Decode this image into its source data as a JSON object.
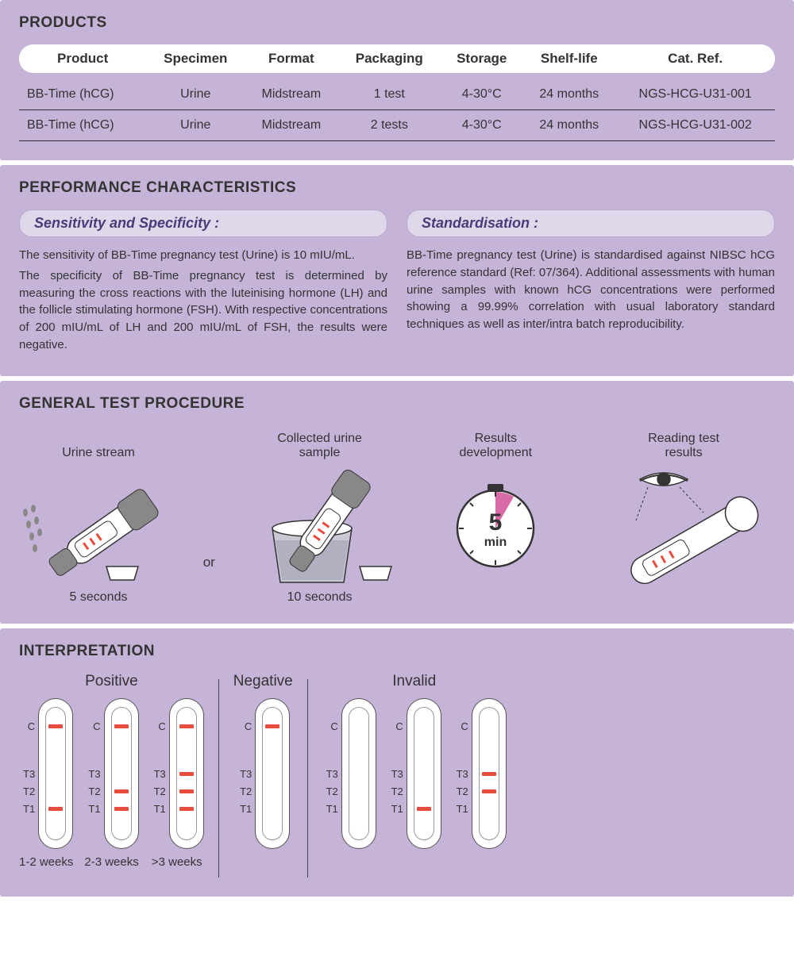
{
  "colors": {
    "panel_bg": "#c5b4d8",
    "header_pill_bg": "#e0d7eb",
    "header_pill_border": "#b8a8cc",
    "header_pill_text": "#4a3a7a",
    "text": "#333333",
    "line_red": "#e74c3c",
    "strip_border": "#555555",
    "strip_inner_border": "#999999",
    "row_border": "#333333",
    "white": "#ffffff",
    "clock_pink": "#d96aa8",
    "gray_fill": "#888888"
  },
  "products": {
    "title": "PRODUCTS",
    "columns": [
      "Product",
      "Specimen",
      "Format",
      "Packaging",
      "Storage",
      "Shelf-life",
      "Cat. Ref."
    ],
    "rows": [
      [
        "BB-Time (hCG)",
        "Urine",
        "Midstream",
        "1 test",
        "4-30°C",
        "24 months",
        "NGS-HCG-U31-001"
      ],
      [
        "BB-Time (hCG)",
        "Urine",
        "Midstream",
        "2 tests",
        "4-30°C",
        "24 months",
        "NGS-HCG-U31-002"
      ]
    ]
  },
  "performance": {
    "title": "PERFORMANCE CHARACTERISTICS",
    "left": {
      "heading": "Sensitivity and Specificity :",
      "text": "The sensitivity of BB-Time pregnancy test (Urine) is 10 mIU/mL.\nThe specificity of BB-Time pregnancy test is determined by measuring the cross reactions with the luteinising hormone (LH) and the follicle stimulating hormone (FSH). With respective concentrations of 200 mIU/mL of LH and 200 mIU/mL of FSH, the results were negative."
    },
    "right": {
      "heading": "Standardisation :",
      "text": "BB-Time pregnancy test (Urine) is standardised against NIBSC hCG reference standard (Ref: 07/364). Additional assessments with human urine samples with known hCG concentrations were performed showing a 99.99% correlation with usual laboratory standard techniques as well as inter/intra batch reproducibility."
    }
  },
  "procedure": {
    "title": "GENERAL TEST PROCEDURE",
    "step1": {
      "top": "Urine stream",
      "bottom": "5 seconds"
    },
    "or": "or",
    "step2": {
      "top": "Collected urine sample",
      "bottom": "10 seconds"
    },
    "step3": {
      "top": "Results development",
      "clock_big": "5",
      "clock_small": "min"
    },
    "step4": {
      "top": "Reading test results"
    }
  },
  "interpretation": {
    "title": "INTERPRETATION",
    "strip_labels": {
      "C": "C",
      "T3": "T3",
      "T2": "T2",
      "T1": "T1"
    },
    "groups": [
      {
        "title": "Positive",
        "strips": [
          {
            "lines": [
              "C",
              "T1"
            ],
            "caption": "1-2 weeks"
          },
          {
            "lines": [
              "C",
              "T2",
              "T1"
            ],
            "caption": "2-3 weeks"
          },
          {
            "lines": [
              "C",
              "T3",
              "T2",
              "T1"
            ],
            "caption": ">3 weeks"
          }
        ]
      },
      {
        "title": "Negative",
        "strips": [
          {
            "lines": [
              "C"
            ],
            "caption": ""
          }
        ]
      },
      {
        "title": "Invalid",
        "strips": [
          {
            "lines": [],
            "caption": ""
          },
          {
            "lines": [
              "T1"
            ],
            "caption": ""
          },
          {
            "lines": [
              "T3",
              "T2"
            ],
            "caption": ""
          }
        ]
      }
    ]
  }
}
